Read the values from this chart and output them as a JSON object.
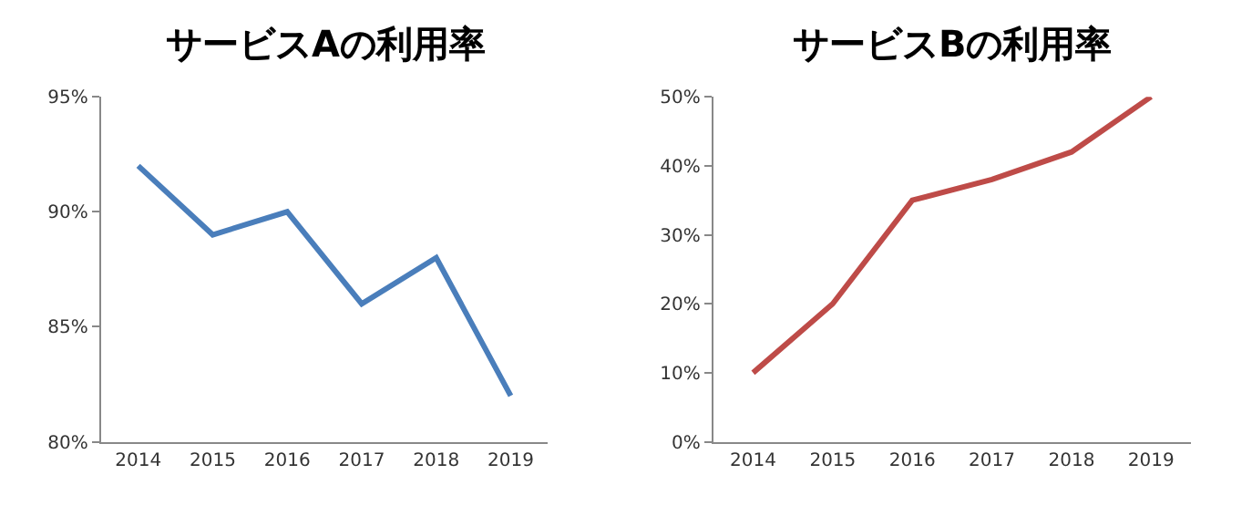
{
  "chart_data": [
    {
      "type": "line",
      "title": "サービスAの利用率",
      "categories": [
        "2014",
        "2015",
        "2016",
        "2017",
        "2018",
        "2019"
      ],
      "series": [
        {
          "color": "#4a7ebb",
          "values": [
            92,
            89,
            90,
            86,
            88,
            82
          ]
        }
      ],
      "ylim": [
        80,
        95
      ],
      "yticks": [
        {
          "value": 80,
          "label": "80%"
        },
        {
          "value": 85,
          "label": "85%"
        },
        {
          "value": 90,
          "label": "90%"
        },
        {
          "value": 95,
          "label": "95%"
        }
      ],
      "grid": false,
      "marker": "none",
      "line_style": "solid"
    },
    {
      "type": "line",
      "title": "サービスBの利用率",
      "categories": [
        "2014",
        "2015",
        "2016",
        "2017",
        "2018",
        "2019"
      ],
      "series": [
        {
          "color": "#be4b48",
          "values": [
            10,
            20,
            35,
            38,
            42,
            50
          ]
        }
      ],
      "ylim": [
        0,
        50
      ],
      "yticks": [
        {
          "value": 0,
          "label": "0%"
        },
        {
          "value": 10,
          "label": "10%"
        },
        {
          "value": 20,
          "label": "20%"
        },
        {
          "value": 30,
          "label": "30%"
        },
        {
          "value": 40,
          "label": "40%"
        },
        {
          "value": 50,
          "label": "50%"
        }
      ],
      "grid": false,
      "marker": "none",
      "line_style": "solid"
    }
  ]
}
